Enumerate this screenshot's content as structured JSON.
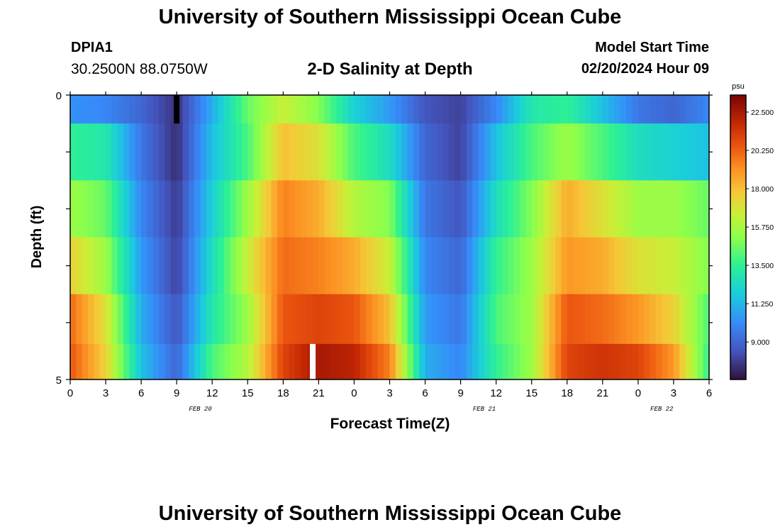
{
  "header": {
    "title": "University of Southern Mississippi Ocean Cube",
    "station": "DPIA1",
    "location": "30.2500N  88.0750W",
    "subtitle": "2-D Salinity at Depth",
    "model_start_label": "Model Start Time",
    "model_start_value": "02/20/2024 Hour 09"
  },
  "footer": {
    "title": "University of Southern Mississippi Ocean Cube"
  },
  "chart_data": {
    "type": "heatmap",
    "title": "2-D Salinity at Depth",
    "xlabel": "Forecast Time(Z)",
    "ylabel": "Depth (ft)",
    "x_tick_labels": [
      "0",
      "3",
      "6",
      "9",
      "12",
      "15",
      "18",
      "21",
      "0",
      "3",
      "6",
      "9",
      "12",
      "15",
      "18",
      "21",
      "0",
      "3",
      "6"
    ],
    "date_labels": [
      {
        "text": "FEB 20",
        "at_hour": 11
      },
      {
        "text": "FEB 21",
        "at_hour": 35
      },
      {
        "text": "FEB 22",
        "at_hour": 50
      }
    ],
    "xlim": [
      0,
      54
    ],
    "ylim": [
      0,
      5
    ],
    "y_tick_labels": [
      "0",
      "5"
    ],
    "depth_layers": [
      0.25,
      1,
      2,
      3,
      4,
      4.75
    ],
    "colorbar": {
      "unit": "psu",
      "ticks": [
        "22.500",
        "20.250",
        "18.000",
        "15.750",
        "13.500",
        "11.250",
        "9.000"
      ],
      "vmin": 6.8,
      "vmax": 23.5
    },
    "profiles": [
      {
        "name": "surface",
        "hours": [
          0,
          3,
          6,
          9,
          12,
          15,
          18,
          21,
          24,
          27,
          30,
          33,
          36,
          39,
          42,
          45,
          48,
          51,
          54
        ],
        "values": [
          10.3,
          10.0,
          9.0,
          7.6,
          11.0,
          14.5,
          16.5,
          15.0,
          12.0,
          10.5,
          8.5,
          8.0,
          10.0,
          13.0,
          13.5,
          11.5,
          9.5,
          9.0,
          10.0
        ]
      },
      {
        "name": "layer-2",
        "hours": [
          0,
          3,
          6,
          9,
          12,
          15,
          18,
          21,
          24,
          27,
          30,
          33,
          36,
          39,
          42,
          45,
          48,
          51,
          54
        ],
        "values": [
          13.5,
          13.0,
          9.5,
          7.5,
          11.5,
          14.0,
          18.0,
          17.0,
          14.0,
          12.5,
          9.0,
          8.0,
          11.5,
          14.0,
          15.5,
          14.0,
          12.5,
          12.0,
          11.5
        ]
      },
      {
        "name": "layer-3",
        "hours": [
          0,
          3,
          6,
          9,
          12,
          15,
          18,
          21,
          24,
          27,
          30,
          33,
          36,
          39,
          42,
          45,
          48,
          51,
          54
        ],
        "values": [
          15.5,
          14.5,
          10.0,
          7.8,
          12.0,
          15.5,
          19.5,
          18.5,
          16.0,
          15.0,
          9.5,
          8.5,
          12.5,
          15.0,
          18.5,
          17.0,
          15.5,
          15.5,
          14.5
        ]
      },
      {
        "name": "layer-4",
        "hours": [
          0,
          3,
          6,
          9,
          12,
          15,
          18,
          21,
          24,
          27,
          30,
          33,
          36,
          39,
          42,
          45,
          48,
          51,
          54
        ],
        "values": [
          17.5,
          15.5,
          10.5,
          8.0,
          12.5,
          16.5,
          20.0,
          19.5,
          18.5,
          16.5,
          10.0,
          9.0,
          13.5,
          15.5,
          19.0,
          18.5,
          17.0,
          16.5,
          15.0
        ]
      },
      {
        "name": "layer-5",
        "hours": [
          0,
          3,
          6,
          9,
          12,
          15,
          18,
          21,
          24,
          27,
          30,
          33,
          36,
          39,
          42,
          45,
          48,
          51,
          54
        ],
        "values": [
          20.0,
          17.0,
          11.0,
          8.5,
          13.0,
          15.5,
          20.5,
          21.0,
          20.5,
          18.0,
          10.5,
          9.5,
          14.0,
          15.5,
          20.5,
          20.0,
          19.0,
          17.5,
          14.0
        ]
      },
      {
        "name": "bottom",
        "hours": [
          0,
          3,
          6,
          9,
          12,
          15,
          18,
          21,
          24,
          27,
          30,
          33,
          36,
          39,
          42,
          45,
          48,
          51,
          54
        ],
        "values": [
          20.5,
          17.5,
          11.5,
          9.0,
          14.0,
          16.0,
          21.0,
          22.5,
          22.0,
          19.5,
          11.0,
          10.0,
          13.5,
          15.5,
          21.0,
          21.5,
          21.0,
          19.0,
          13.5
        ]
      }
    ],
    "missing_cells": [
      {
        "hour": 9,
        "layer": "surface",
        "marker": "black"
      },
      {
        "hour": 20.5,
        "layer": "bottom",
        "marker": "white"
      }
    ]
  }
}
